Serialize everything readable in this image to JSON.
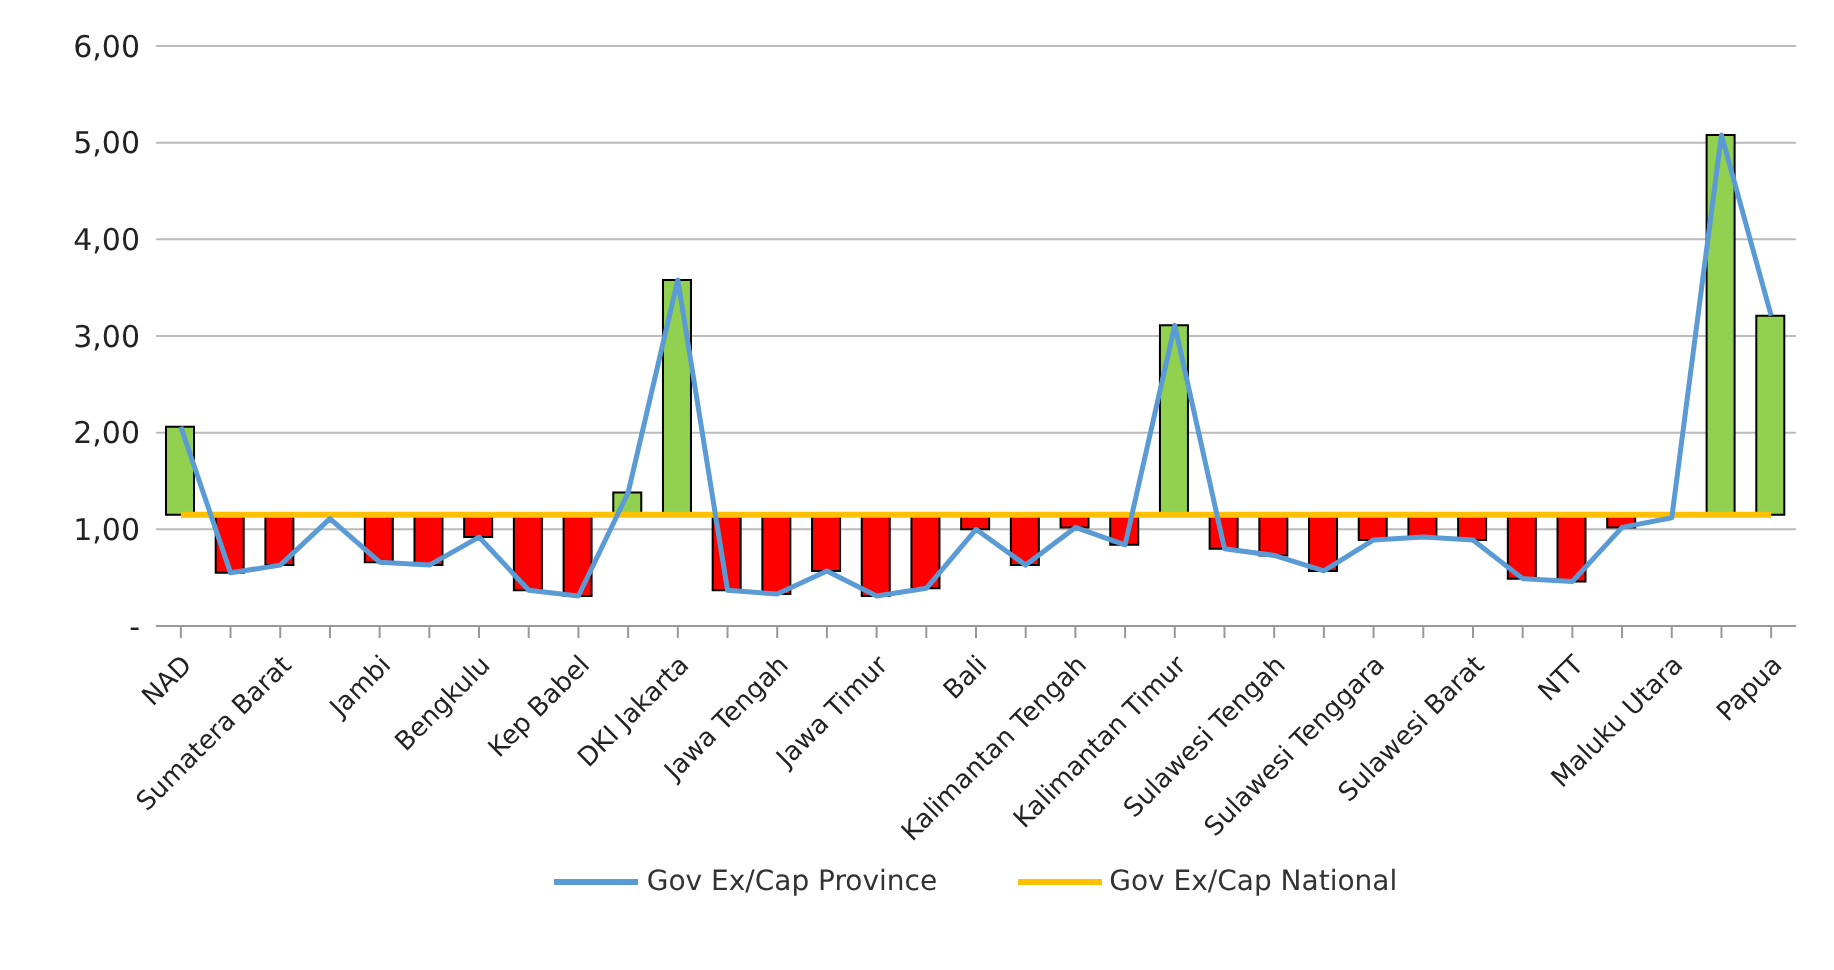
{
  "chart_data": {
    "type": "line",
    "categories": [
      "NAD",
      null,
      "Sumatera Barat",
      null,
      "Jambi",
      null,
      "Bengkulu",
      null,
      "Kep Babel",
      null,
      "DKI Jakarta",
      null,
      "Jawa Tengah",
      null,
      "Jawa Timur",
      null,
      "Bali",
      null,
      "Kalimantan Tengah",
      null,
      "Kalimantan Timur",
      null,
      "Sulawesi Tengah",
      null,
      "Sulawesi Tenggara",
      null,
      "Sulawesi Barat",
      null,
      "NTT",
      null,
      "Maluku Utara",
      null,
      "Papua"
    ],
    "series": [
      {
        "type": "bar",
        "base": [
          1.15,
          1.15,
          1.15,
          null,
          1.15,
          1.15,
          1.15,
          1.15,
          1.15,
          1.15,
          1.15,
          1.15,
          1.15,
          1.15,
          1.15,
          1.15,
          1.15,
          1.15,
          1.15,
          1.15,
          1.15,
          1.15,
          1.15,
          1.15,
          1.15,
          1.15,
          1.15,
          1.15,
          1.15,
          1.15,
          null,
          1.15,
          1.15
        ],
        "values": [
          0.91,
          -0.6,
          -0.52,
          null,
          -0.49,
          -0.52,
          -0.23,
          -0.78,
          -0.84,
          0.23,
          2.43,
          -0.78,
          -0.82,
          -0.58,
          -0.84,
          -0.76,
          -0.15,
          -0.52,
          -0.13,
          -0.31,
          1.96,
          -0.35,
          -0.42,
          -0.58,
          -0.26,
          -0.23,
          -0.26,
          -0.66,
          -0.69,
          -0.13,
          null,
          3.93,
          2.06
        ],
        "colors": [
          "#92d050",
          "#ff0000",
          "#ff0000",
          "#ff0000",
          "#ff0000",
          "#ff0000",
          "#ff0000",
          "#ff0000",
          "#ff0000",
          "#92d050",
          "#92d050",
          "#ff0000",
          "#ff0000",
          "#ff0000",
          "#ff0000",
          "#ff0000",
          "#ff0000",
          "#ff0000",
          "#ff0000",
          "#ff0000",
          "#92d050",
          "#ff0000",
          "#ff0000",
          "#ff0000",
          "#ff0000",
          "#ff0000",
          "#ff0000",
          "#ff0000",
          "#ff0000",
          "#ff0000",
          "#ff0000",
          "#92d050",
          "#92d050"
        ]
      },
      {
        "name": "Gov Ex/Cap Province",
        "color": "#5b9bd5",
        "values": [
          2.06,
          0.55,
          0.63,
          1.11,
          0.66,
          0.63,
          0.92,
          0.37,
          0.31,
          1.38,
          3.58,
          0.37,
          0.33,
          0.57,
          0.31,
          0.39,
          1.0,
          0.63,
          1.02,
          0.84,
          3.11,
          0.8,
          0.73,
          0.57,
          0.89,
          0.92,
          0.89,
          0.49,
          0.46,
          1.02,
          1.12,
          5.08,
          3.21
        ]
      },
      {
        "name": "Gov Ex/Cap National",
        "color": "#ffc000",
        "values": [
          1.15,
          1.15,
          1.15,
          1.15,
          1.15,
          1.15,
          1.15,
          1.15,
          1.15,
          1.15,
          1.15,
          1.15,
          1.15,
          1.15,
          1.15,
          1.15,
          1.15,
          1.15,
          1.15,
          1.15,
          1.15,
          1.15,
          1.15,
          1.15,
          1.15,
          1.15,
          1.15,
          1.15,
          1.15,
          1.15,
          1.15,
          1.15,
          1.15
        ]
      }
    ],
    "ylim": [
      0,
      6
    ],
    "yticks": [
      {
        "value": 0,
        "label": "-"
      },
      {
        "value": 1,
        "label": "1,00"
      },
      {
        "value": 2,
        "label": "2,00"
      },
      {
        "value": 3,
        "label": "3,00"
      },
      {
        "value": 4,
        "label": "4,00"
      },
      {
        "value": 5,
        "label": "5,00"
      },
      {
        "value": 6,
        "label": "6,00"
      }
    ],
    "grid": "y",
    "legend": "bottom",
    "marker": "none",
    "line_style": "solid"
  }
}
